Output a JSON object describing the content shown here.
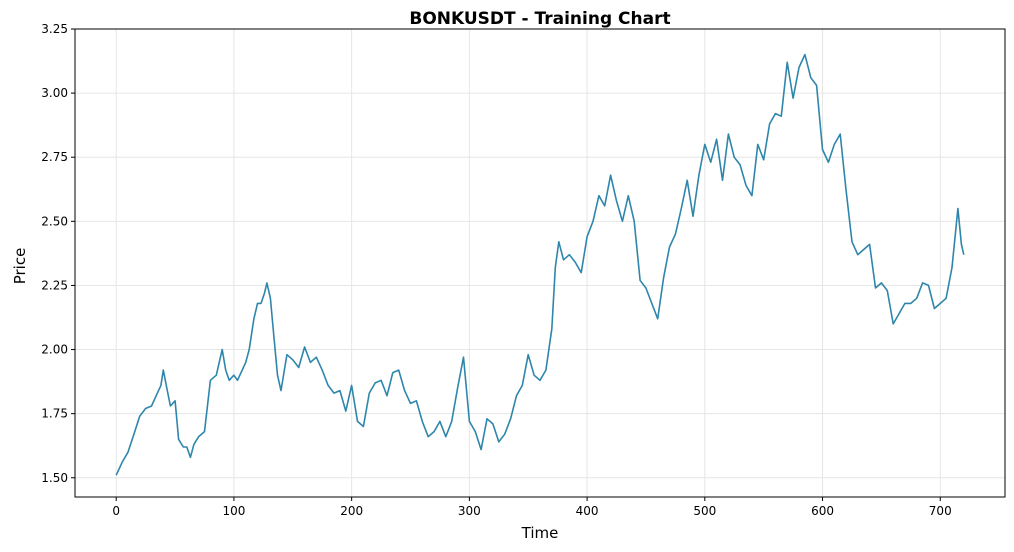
{
  "chart_data": {
    "type": "line",
    "title": "BONKUSDT - Training Chart",
    "xlabel": "Time",
    "ylabel": "Price",
    "xlim": [
      -35,
      755
    ],
    "ylim": [
      1.425,
      3.25
    ],
    "grid": true,
    "x_ticks": [
      0,
      100,
      200,
      300,
      400,
      500,
      600,
      700
    ],
    "y_ticks": [
      1.5,
      1.75,
      2.0,
      2.25,
      2.5,
      2.75,
      3.0,
      3.25
    ],
    "x_tick_labels": [
      "0",
      "100",
      "200",
      "300",
      "400",
      "500",
      "600",
      "700"
    ],
    "y_tick_labels": [
      "1.50",
      "1.75",
      "2.00",
      "2.25",
      "2.50",
      "2.75",
      "3.00",
      "3.25"
    ],
    "series": [
      {
        "color": "#2e86ab",
        "x": [
          0,
          5,
          10,
          15,
          20,
          25,
          30,
          35,
          38,
          40,
          43,
          46,
          50,
          53,
          57,
          60,
          63,
          66,
          70,
          75,
          80,
          85,
          88,
          90,
          93,
          96,
          100,
          103,
          107,
          110,
          113,
          117,
          120,
          123,
          126,
          128,
          131,
          134,
          137,
          140,
          145,
          150,
          155,
          160,
          165,
          170,
          175,
          180,
          185,
          190,
          195,
          200,
          205,
          210,
          215,
          220,
          225,
          230,
          235,
          240,
          245,
          250,
          255,
          260,
          265,
          270,
          275,
          280,
          285,
          290,
          295,
          300,
          305,
          310,
          315,
          320,
          325,
          330,
          335,
          340,
          345,
          350,
          355,
          360,
          365,
          370,
          373,
          376,
          380,
          385,
          390,
          395,
          400,
          405,
          410,
          415,
          420,
          425,
          430,
          435,
          440,
          445,
          450,
          455,
          460,
          465,
          470,
          475,
          480,
          485,
          490,
          495,
          500,
          505,
          510,
          515,
          520,
          525,
          530,
          535,
          540,
          545,
          550,
          555,
          560,
          565,
          570,
          575,
          580,
          585,
          590,
          595,
          600,
          605,
          610,
          615,
          620,
          625,
          630,
          635,
          640,
          645,
          650,
          655,
          660,
          665,
          670,
          675,
          680,
          685,
          690,
          695,
          700,
          705,
          710,
          715,
          718,
          720
        ],
        "y": [
          1.51,
          1.56,
          1.6,
          1.67,
          1.74,
          1.77,
          1.78,
          1.83,
          1.86,
          1.92,
          1.85,
          1.78,
          1.8,
          1.65,
          1.62,
          1.62,
          1.58,
          1.63,
          1.66,
          1.68,
          1.88,
          1.9,
          1.96,
          2.0,
          1.92,
          1.88,
          1.9,
          1.88,
          1.92,
          1.95,
          2.0,
          2.12,
          2.18,
          2.18,
          2.22,
          2.26,
          2.2,
          2.05,
          1.9,
          1.84,
          1.98,
          1.96,
          1.93,
          2.01,
          1.95,
          1.97,
          1.92,
          1.86,
          1.83,
          1.84,
          1.76,
          1.86,
          1.72,
          1.7,
          1.83,
          1.87,
          1.88,
          1.82,
          1.91,
          1.92,
          1.84,
          1.79,
          1.8,
          1.72,
          1.66,
          1.68,
          1.72,
          1.66,
          1.72,
          1.85,
          1.97,
          1.72,
          1.68,
          1.61,
          1.73,
          1.71,
          1.64,
          1.67,
          1.73,
          1.82,
          1.86,
          1.98,
          1.9,
          1.88,
          1.92,
          2.08,
          2.32,
          2.42,
          2.35,
          2.37,
          2.34,
          2.3,
          2.44,
          2.5,
          2.6,
          2.56,
          2.68,
          2.58,
          2.5,
          2.6,
          2.5,
          2.27,
          2.24,
          2.18,
          2.12,
          2.28,
          2.4,
          2.45,
          2.55,
          2.66,
          2.52,
          2.68,
          2.8,
          2.73,
          2.82,
          2.66,
          2.84,
          2.75,
          2.72,
          2.64,
          2.6,
          2.8,
          2.74,
          2.88,
          2.92,
          2.91,
          3.12,
          2.98,
          3.1,
          3.15,
          3.06,
          3.03,
          2.78,
          2.73,
          2.8,
          2.84,
          2.62,
          2.42,
          2.37,
          2.39,
          2.41,
          2.24,
          2.26,
          2.23,
          2.1,
          2.14,
          2.18,
          2.18,
          2.2,
          2.26,
          2.25,
          2.16,
          2.18,
          2.2,
          2.32,
          2.55,
          2.41,
          2.37
        ]
      }
    ]
  }
}
